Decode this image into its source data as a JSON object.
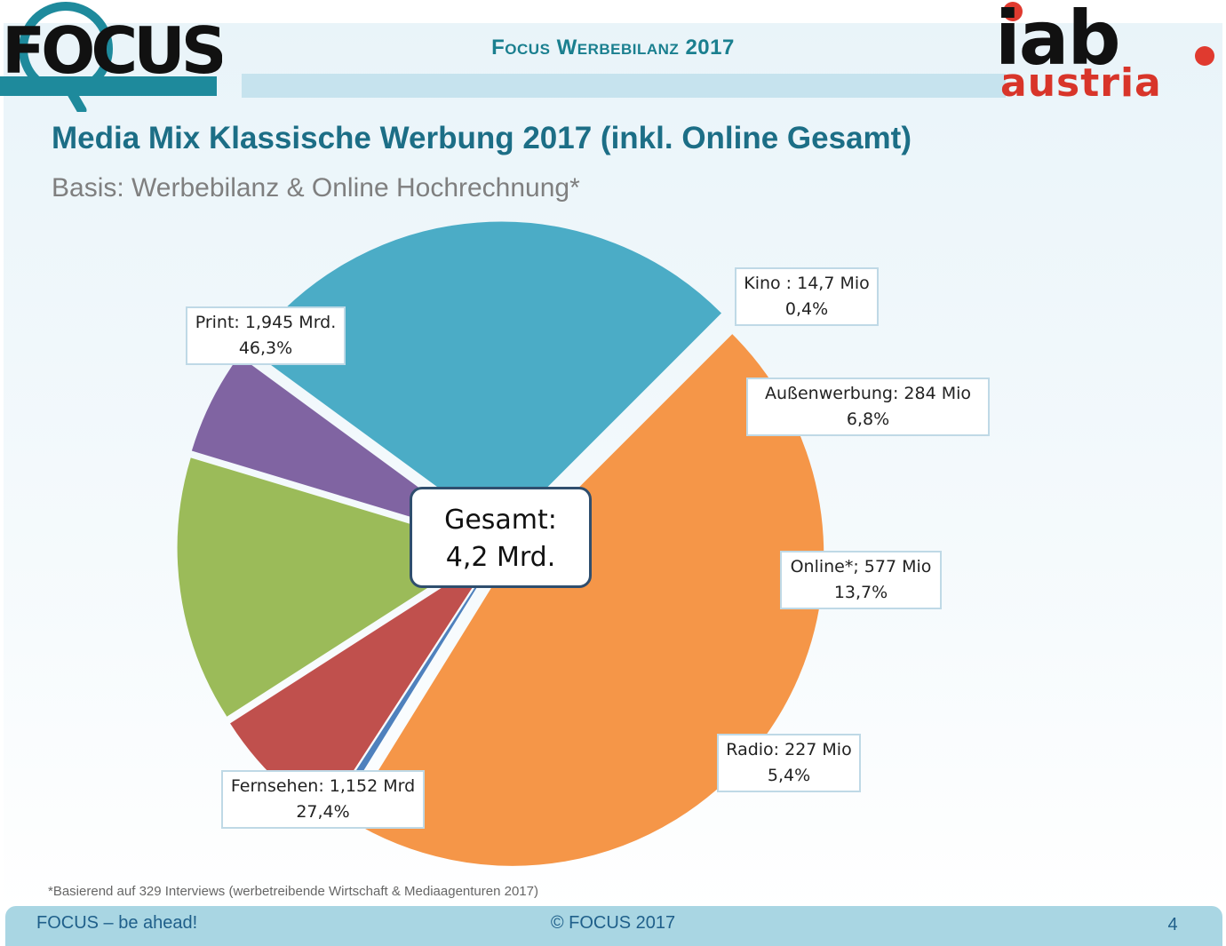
{
  "header": {
    "brand_title": "Focus Werbebilanz 2017",
    "focus_logo_text": "FOCUS",
    "iab_logo_top": "iab",
    "iab_logo_bottom": "austria"
  },
  "title": "Media Mix Klassische Werbung 2017 (inkl. Online Gesamt)",
  "subtitle": "Basis: Werbebilanz & Online Hochrechnung*",
  "chart_data": {
    "type": "pie",
    "title": "Media Mix Klassische Werbung 2017 (inkl. Online Gesamt)",
    "center_label": [
      "Gesamt:",
      "4,2 Mrd."
    ],
    "slices": [
      {
        "name": "Print",
        "value": 1945,
        "unit": "Mio",
        "percent": 46.3,
        "color": "#f59648",
        "label_line1": "Print: 1,945 Mrd.",
        "label_line2": "46,3%"
      },
      {
        "name": "Kino",
        "value": 14.7,
        "unit": "Mio",
        "percent": 0.4,
        "color": "#4f81bd",
        "label_line1": "Kino : 14,7 Mio",
        "label_line2": "0,4%"
      },
      {
        "name": "Außenwerbung",
        "value": 284,
        "unit": "Mio",
        "percent": 6.8,
        "color": "#c0504d",
        "label_line1": "Außenwerbung: 284 Mio",
        "label_line2": "6,8%"
      },
      {
        "name": "Online*",
        "value": 577,
        "unit": "Mio",
        "percent": 13.7,
        "color": "#9bbb59",
        "label_line1": "Online*; 577 Mio",
        "label_line2": "13,7%"
      },
      {
        "name": "Radio",
        "value": 227,
        "unit": "Mio",
        "percent": 5.4,
        "color": "#8064a2",
        "label_line1": "Radio: 227 Mio",
        "label_line2": "5,4%"
      },
      {
        "name": "Fernsehen",
        "value": 1152,
        "unit": "Mio",
        "percent": 27.4,
        "color": "#4bacc6",
        "label_line1": "Fernsehen: 1,152 Mrd",
        "label_line2": "27,4%"
      }
    ]
  },
  "footnote": "*Basierend auf 329 Interviews (werbetreibende Wirtschaft & Mediaagenturen 2017)",
  "footer": {
    "left": "FOCUS – be ahead!",
    "center": "© FOCUS 2017",
    "page_number": "4"
  }
}
